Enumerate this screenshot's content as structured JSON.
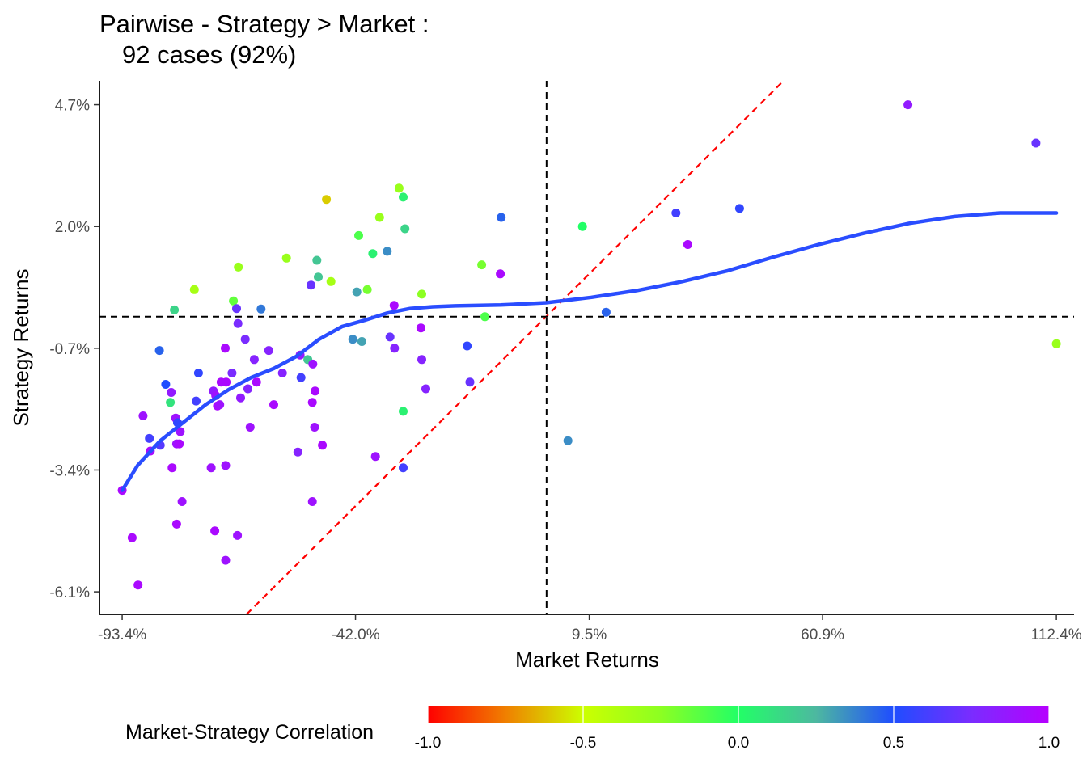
{
  "chart_data": {
    "type": "scatter",
    "title": "Pairwise - Strategy > Market :",
    "subtitle": "92 cases (92%)",
    "xlabel": "Market Returns",
    "ylabel": "Strategy Returns",
    "x_ticks": [
      "-93.4%",
      "-42.0%",
      "9.5%",
      "60.9%",
      "112.4%"
    ],
    "x_tick_values": [
      -93.4,
      -42.0,
      9.5,
      60.9,
      112.4
    ],
    "y_ticks": [
      "4.7%",
      "2.0%",
      "-0.7%",
      "-3.4%",
      "-6.1%"
    ],
    "y_tick_values": [
      4.7,
      2.0,
      -0.7,
      -3.4,
      -6.1
    ],
    "xlim": [
      -98.4,
      116.3
    ],
    "ylim": [
      -6.6,
      5.23
    ],
    "grid": false,
    "reference_lines": {
      "vertical_x": 0.1,
      "horizontal_y": 0.0,
      "identity_line_color": "#ff0000"
    },
    "legend": {
      "title": "Market-Strategy Correlation",
      "placement": "bottom",
      "ticks": [
        "-1.0",
        "-0.5",
        "0.0",
        "0.5",
        "1.0"
      ],
      "tick_values": [
        -1.0,
        -0.5,
        0.0,
        0.5,
        1.0
      ]
    },
    "smooth_color": "#2a4dff",
    "smooth_line": [
      [
        -93.4,
        -3.85
      ],
      [
        -90,
        -3.3
      ],
      [
        -85,
        -2.75
      ],
      [
        -80,
        -2.35
      ],
      [
        -75,
        -1.95
      ],
      [
        -70,
        -1.62
      ],
      [
        -65,
        -1.35
      ],
      [
        -60,
        -1.15
      ],
      [
        -55,
        -0.88
      ],
      [
        -50,
        -0.5
      ],
      [
        -45,
        -0.22
      ],
      [
        -40,
        -0.08
      ],
      [
        -35,
        0.08
      ],
      [
        -30,
        0.18
      ],
      [
        -25,
        0.22
      ],
      [
        -20,
        0.24
      ],
      [
        -10,
        0.26
      ],
      [
        0,
        0.31
      ],
      [
        10,
        0.43
      ],
      [
        20,
        0.58
      ],
      [
        30,
        0.78
      ],
      [
        40,
        1.02
      ],
      [
        50,
        1.32
      ],
      [
        60,
        1.6
      ],
      [
        70,
        1.85
      ],
      [
        80,
        2.07
      ],
      [
        90,
        2.22
      ],
      [
        100,
        2.3
      ],
      [
        112.4,
        2.3
      ]
    ],
    "points": [
      {
        "x": -93.4,
        "y": -3.85,
        "c": 0.95
      },
      {
        "x": -91.2,
        "y": -4.9,
        "c": 0.95
      },
      {
        "x": -89.9,
        "y": -5.95,
        "c": 0.95
      },
      {
        "x": -88.8,
        "y": -2.2,
        "c": 0.9
      },
      {
        "x": -87.4,
        "y": -2.7,
        "c": 0.6
      },
      {
        "x": -87.2,
        "y": -2.98,
        "c": 0.95
      },
      {
        "x": -85.2,
        "y": -0.75,
        "c": 0.45
      },
      {
        "x": -85.0,
        "y": -2.85,
        "c": 0.65
      },
      {
        "x": -83.8,
        "y": -1.5,
        "c": 0.5
      },
      {
        "x": -82.8,
        "y": -1.9,
        "c": 0.1
      },
      {
        "x": -82.6,
        "y": -1.68,
        "c": 0.85
      },
      {
        "x": -82.4,
        "y": -3.35,
        "c": 0.95
      },
      {
        "x": -81.9,
        "y": 0.15,
        "c": 0.15
      },
      {
        "x": -81.6,
        "y": -2.25,
        "c": 0.9
      },
      {
        "x": -81.4,
        "y": -2.82,
        "c": 0.9
      },
      {
        "x": -81.4,
        "y": -4.6,
        "c": 0.95
      },
      {
        "x": -81.2,
        "y": -2.35,
        "c": 0.55
      },
      {
        "x": -80.8,
        "y": -2.82,
        "c": 0.95
      },
      {
        "x": -80.6,
        "y": -2.55,
        "c": 0.9
      },
      {
        "x": -80.2,
        "y": -4.1,
        "c": 0.9
      },
      {
        "x": -77.5,
        "y": 0.6,
        "c": -0.35
      },
      {
        "x": -77.1,
        "y": -1.87,
        "c": 0.6
      },
      {
        "x": -76.6,
        "y": -1.25,
        "c": 0.55
      },
      {
        "x": -73.8,
        "y": -3.35,
        "c": 0.9
      },
      {
        "x": -73.3,
        "y": -1.65,
        "c": 0.85
      },
      {
        "x": -73.0,
        "y": -4.75,
        "c": 0.95
      },
      {
        "x": -72.8,
        "y": -1.75,
        "c": 0.9
      },
      {
        "x": -72.4,
        "y": -1.98,
        "c": 0.95
      },
      {
        "x": -71.9,
        "y": -1.95,
        "c": 0.9
      },
      {
        "x": -71.6,
        "y": -1.45,
        "c": 0.95
      },
      {
        "x": -70.7,
        "y": -0.7,
        "c": 0.95
      },
      {
        "x": -70.6,
        "y": -3.3,
        "c": 0.9
      },
      {
        "x": -70.6,
        "y": -5.4,
        "c": 0.9
      },
      {
        "x": -70.5,
        "y": -1.45,
        "c": 0.95
      },
      {
        "x": -69.2,
        "y": -1.25,
        "c": 0.75
      },
      {
        "x": -68.9,
        "y": 0.35,
        "c": -0.15
      },
      {
        "x": -68.2,
        "y": 0.18,
        "c": 0.7
      },
      {
        "x": -68.0,
        "y": -4.85,
        "c": 0.9
      },
      {
        "x": -67.9,
        "y": -0.15,
        "c": 0.75
      },
      {
        "x": -67.8,
        "y": 1.1,
        "c": -0.3
      },
      {
        "x": -67.3,
        "y": -1.8,
        "c": 0.85
      },
      {
        "x": -66.3,
        "y": -0.5,
        "c": 0.75
      },
      {
        "x": -65.7,
        "y": -1.6,
        "c": 0.8
      },
      {
        "x": -65.2,
        "y": -2.45,
        "c": 0.9
      },
      {
        "x": -64.3,
        "y": -0.95,
        "c": 0.8
      },
      {
        "x": -63.8,
        "y": -1.45,
        "c": 0.95
      },
      {
        "x": -62.8,
        "y": 0.17,
        "c": 0.4
      },
      {
        "x": -61.1,
        "y": -0.75,
        "c": 0.8
      },
      {
        "x": -60.0,
        "y": -1.95,
        "c": 0.95
      },
      {
        "x": -58.1,
        "y": -1.25,
        "c": 0.8
      },
      {
        "x": -57.2,
        "y": 1.3,
        "c": -0.3
      },
      {
        "x": -54.7,
        "y": -3.0,
        "c": 0.8
      },
      {
        "x": -54.2,
        "y": -0.85,
        "c": 0.85
      },
      {
        "x": -54.0,
        "y": -1.35,
        "c": 0.6
      },
      {
        "x": -52.5,
        "y": -0.95,
        "c": 0.2
      },
      {
        "x": -51.8,
        "y": 0.7,
        "c": 0.7
      },
      {
        "x": -51.5,
        "y": -1.9,
        "c": 0.95
      },
      {
        "x": -51.5,
        "y": -4.1,
        "c": 0.9
      },
      {
        "x": -51.4,
        "y": -1.05,
        "c": 0.9
      },
      {
        "x": -51.0,
        "y": -2.45,
        "c": 0.9
      },
      {
        "x": -50.9,
        "y": -1.65,
        "c": 0.95
      },
      {
        "x": -50.5,
        "y": 1.25,
        "c": 0.2
      },
      {
        "x": -50.2,
        "y": 0.88,
        "c": 0.2
      },
      {
        "x": -49.3,
        "y": -2.85,
        "c": 0.95
      },
      {
        "x": -48.4,
        "y": 2.6,
        "c": -0.6
      },
      {
        "x": -47.4,
        "y": 0.78,
        "c": -0.35
      },
      {
        "x": -42.6,
        "y": -0.5,
        "c": 0.35
      },
      {
        "x": -41.7,
        "y": 0.55,
        "c": 0.3
      },
      {
        "x": -41.3,
        "y": 1.8,
        "c": -0.1
      },
      {
        "x": -40.6,
        "y": -0.55,
        "c": 0.3
      },
      {
        "x": -39.4,
        "y": 0.6,
        "c": -0.2
      },
      {
        "x": -38.2,
        "y": 1.4,
        "c": 0.05
      },
      {
        "x": -37.6,
        "y": -3.1,
        "c": 0.9
      },
      {
        "x": -36.7,
        "y": 2.2,
        "c": -0.3
      },
      {
        "x": -35.0,
        "y": 1.45,
        "c": 0.35
      },
      {
        "x": -34.4,
        "y": -0.45,
        "c": 0.7
      },
      {
        "x": -33.5,
        "y": 0.25,
        "c": 0.95
      },
      {
        "x": -33.4,
        "y": -0.7,
        "c": 0.8
      },
      {
        "x": -32.4,
        "y": 2.85,
        "c": -0.3
      },
      {
        "x": -31.5,
        "y": 2.65,
        "c": 0.05
      },
      {
        "x": -31.5,
        "y": -2.1,
        "c": 0.05
      },
      {
        "x": -31.5,
        "y": -3.35,
        "c": 0.6
      },
      {
        "x": -31.1,
        "y": 1.95,
        "c": 0.15
      },
      {
        "x": -27.6,
        "y": -0.25,
        "c": 0.95
      },
      {
        "x": -27.4,
        "y": 0.5,
        "c": -0.25
      },
      {
        "x": -27.4,
        "y": -0.95,
        "c": 0.8
      },
      {
        "x": -26.5,
        "y": -1.6,
        "c": 0.8
      },
      {
        "x": -17.4,
        "y": -0.65,
        "c": 0.55
      },
      {
        "x": -16.8,
        "y": -1.45,
        "c": 0.7
      },
      {
        "x": -14.2,
        "y": 1.15,
        "c": -0.2
      },
      {
        "x": -13.5,
        "y": 0.0,
        "c": -0.1
      },
      {
        "x": -10.1,
        "y": 0.95,
        "c": 0.95
      },
      {
        "x": -9.9,
        "y": 2.2,
        "c": 0.45
      },
      {
        "x": 4.8,
        "y": -2.75,
        "c": 0.35
      },
      {
        "x": 8.0,
        "y": 2.0,
        "c": 0.0
      },
      {
        "x": 13.2,
        "y": 0.1,
        "c": 0.45
      },
      {
        "x": 28.6,
        "y": 2.3,
        "c": 0.6
      },
      {
        "x": 31.2,
        "y": 1.6,
        "c": 0.95
      },
      {
        "x": 42.6,
        "y": 2.4,
        "c": 0.55
      },
      {
        "x": 79.7,
        "y": 4.7,
        "c": 0.85
      },
      {
        "x": 107.9,
        "y": 3.85,
        "c": 0.7
      },
      {
        "x": 112.4,
        "y": -0.6,
        "c": -0.3
      }
    ]
  }
}
